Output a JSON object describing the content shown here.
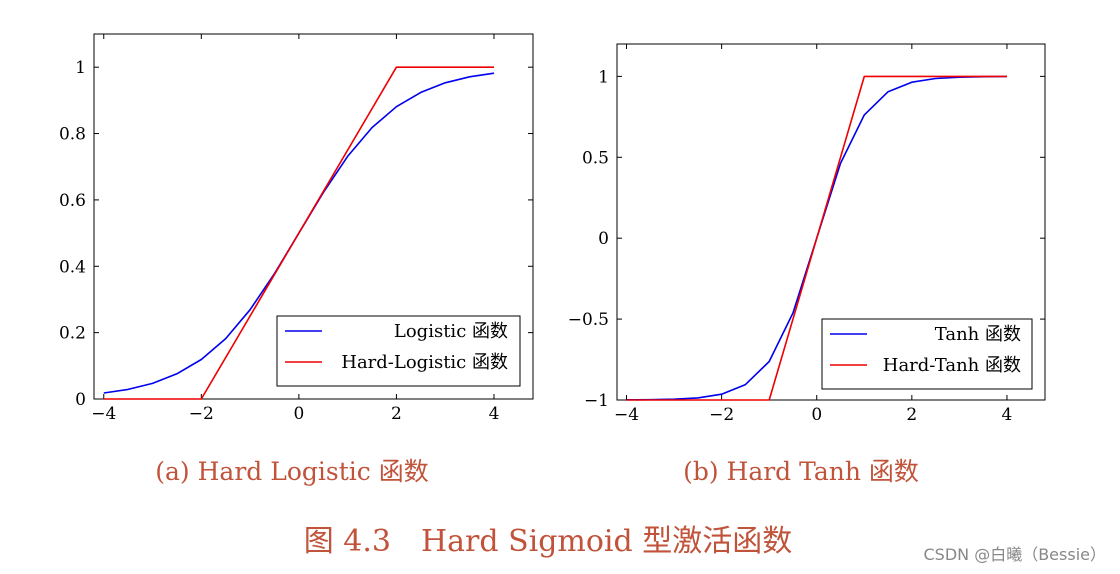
{
  "chart_data": [
    {
      "type": "line",
      "xlim": [
        -4.2,
        4.8
      ],
      "ylim": [
        0,
        1.1
      ],
      "xticks": [
        -4,
        -2,
        0,
        2,
        4
      ],
      "xtick_labels": [
        "−4",
        "−2",
        "0",
        "2",
        "4"
      ],
      "yticks": [
        0,
        0.2,
        0.4,
        0.6,
        0.8,
        1
      ],
      "ytick_labels": [
        "0",
        "0.2",
        "0.4",
        "0.6",
        "0.8",
        "1"
      ],
      "grid": false,
      "legend_position": "bottom-right",
      "series": [
        {
          "name": "Logistic 函数",
          "color": "#0000ee",
          "x": [
            -4,
            -3.5,
            -3,
            -2.5,
            -2,
            -1.5,
            -1,
            -0.5,
            0,
            0.5,
            1,
            1.5,
            2,
            2.5,
            3,
            3.5,
            4
          ],
          "y": [
            0.018,
            0.029,
            0.047,
            0.076,
            0.119,
            0.182,
            0.269,
            0.378,
            0.5,
            0.622,
            0.731,
            0.818,
            0.881,
            0.924,
            0.953,
            0.971,
            0.982
          ]
        },
        {
          "name": "Hard-Logistic 函数",
          "color": "#ee0000",
          "x": [
            -4,
            -2,
            2,
            4
          ],
          "y": [
            0,
            0,
            1,
            1
          ]
        }
      ],
      "caption": "(a) Hard Logistic 函数"
    },
    {
      "type": "line",
      "xlim": [
        -4.2,
        4.8
      ],
      "ylim": [
        -1,
        1.2
      ],
      "xticks": [
        -4,
        -2,
        0,
        2,
        4
      ],
      "xtick_labels": [
        "−4",
        "−2",
        "0",
        "2",
        "4"
      ],
      "yticks": [
        -1,
        -0.5,
        0,
        0.5,
        1
      ],
      "ytick_labels": [
        "−1",
        "−0.5",
        "0",
        "0.5",
        "1"
      ],
      "grid": false,
      "legend_position": "bottom-right",
      "series": [
        {
          "name": "Tanh 函数",
          "color": "#0000ee",
          "x": [
            -4,
            -3.5,
            -3,
            -2.5,
            -2,
            -1.5,
            -1,
            -0.5,
            0,
            0.5,
            1,
            1.5,
            2,
            2.5,
            3,
            3.5,
            4
          ],
          "y": [
            -0.999,
            -0.998,
            -0.995,
            -0.987,
            -0.964,
            -0.905,
            -0.762,
            -0.462,
            0,
            0.462,
            0.762,
            0.905,
            0.964,
            0.987,
            0.995,
            0.998,
            0.999
          ]
        },
        {
          "name": "Hard-Tanh 函数",
          "color": "#ee0000",
          "x": [
            -4,
            -1,
            1,
            4
          ],
          "y": [
            -1,
            -1,
            1,
            1
          ]
        }
      ],
      "caption": "(b) Hard Tanh 函数"
    }
  ],
  "figure_caption": "图 4.3　Hard Sigmoid 型激活函数",
  "watermark": "CSDN @白曦（Bessie）"
}
